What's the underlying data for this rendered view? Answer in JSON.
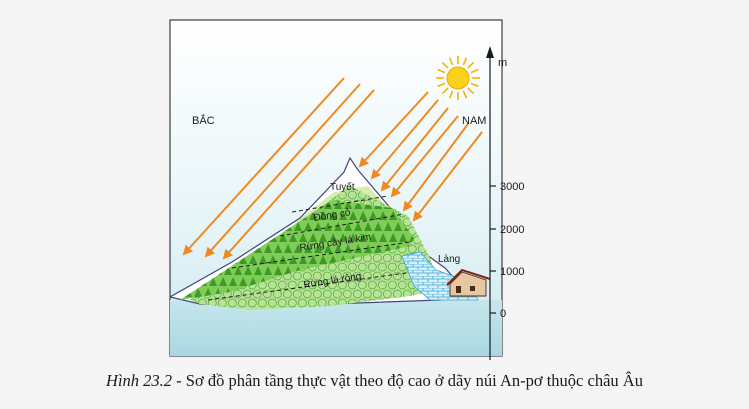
{
  "diagram": {
    "direction_north": "BẮC",
    "direction_south": "NAM",
    "axis_unit": "m",
    "elevation_ticks": [
      "3000",
      "2000",
      "1000",
      "0"
    ],
    "zones": {
      "snow": "Tuyết",
      "grassland": "Đồng cỏ",
      "coniferous": "Rừng cây lá kim",
      "broadleaf": "Rừng lá rộng"
    },
    "village": "Làng"
  },
  "caption": {
    "figure_number": "Hình 23.2",
    "text": " - Sơ đồ phân tầng thực vật theo độ cao ở dãy núi An-pơ thuộc châu Âu"
  },
  "colors": {
    "sky": "#dcf0f4",
    "ground": "#bfe3ea",
    "sun": "#f7d31a",
    "sunlight_arrow": "#f08a1e",
    "conifer_forest": "#66c23e",
    "broadleaf_forest": "#a9dd87",
    "grassland": "#d7ecae",
    "frame": "#3c3c3c"
  }
}
